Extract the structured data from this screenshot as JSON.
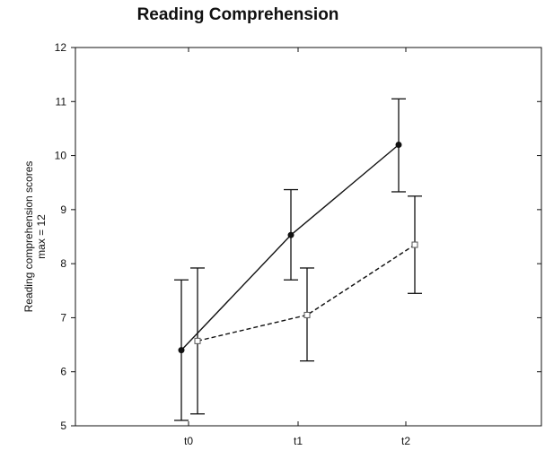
{
  "chart_data": {
    "type": "line",
    "title": "Reading Comprehension",
    "ylabel_lines": [
      "Reading comprehension scores",
      "max = 12"
    ],
    "xlabel": "",
    "categories": [
      "t0",
      "t1",
      "t2"
    ],
    "ylim": [
      5,
      12
    ],
    "yticks": [
      5,
      6,
      7,
      8,
      9,
      10,
      11,
      12
    ],
    "grid": false,
    "legend": "none",
    "series": [
      {
        "style": "solid",
        "marker": "filled-circle",
        "values": [
          6.4,
          8.53,
          10.2
        ],
        "error_low": [
          5.1,
          7.7,
          9.33
        ],
        "error_high": [
          7.7,
          9.37,
          11.05
        ]
      },
      {
        "style": "dashed",
        "marker": "open-square",
        "values": [
          6.57,
          7.05,
          8.35
        ],
        "error_low": [
          5.22,
          6.2,
          7.45
        ],
        "error_high": [
          7.92,
          7.92,
          9.25
        ]
      }
    ]
  }
}
